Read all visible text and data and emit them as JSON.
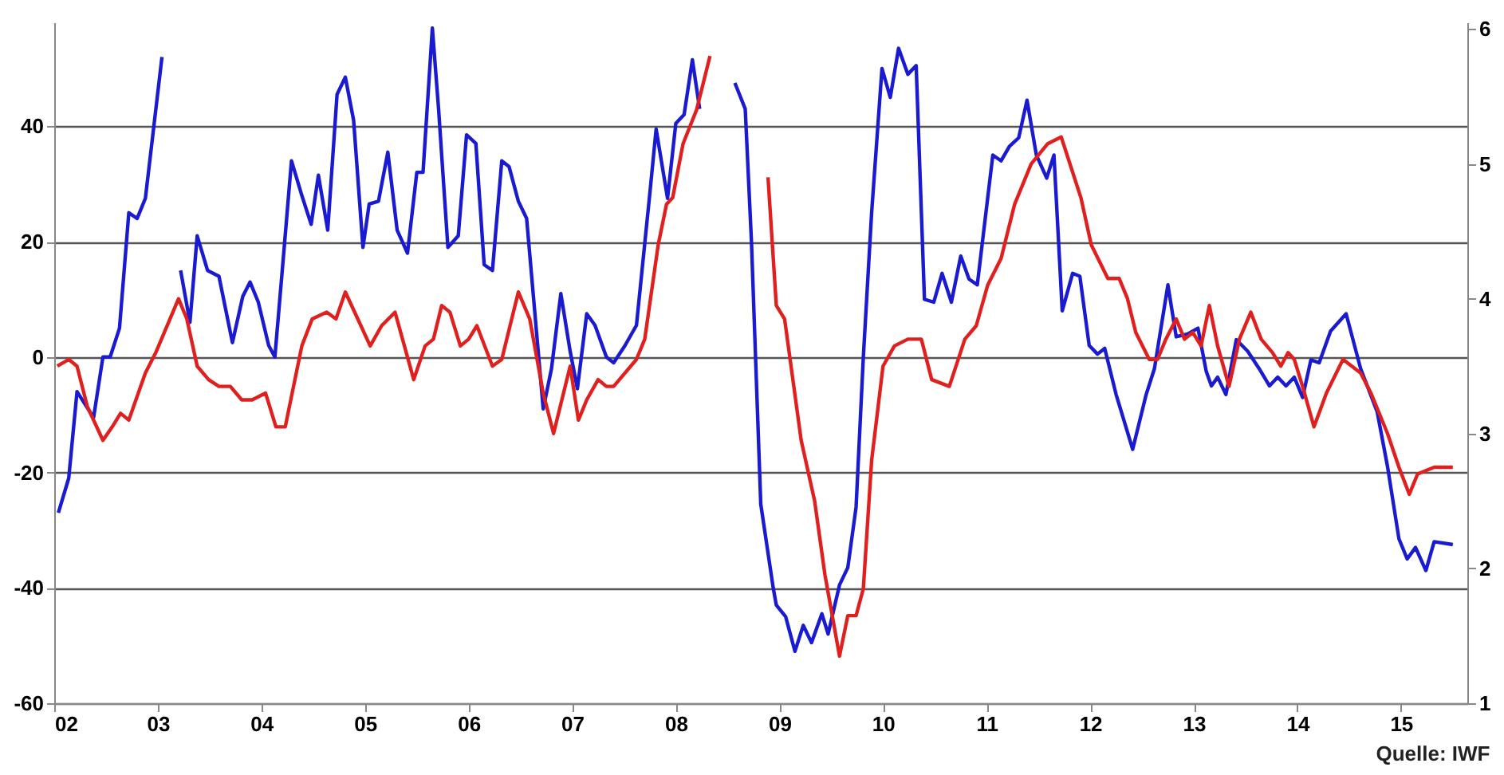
{
  "chart_data": {
    "type": "line",
    "annotations": [
      "Quelle: IWF"
    ],
    "xlim": [
      2002,
      2015.64
    ],
    "xticks": [
      {
        "value": 2002,
        "label": "02"
      },
      {
        "value": 2003,
        "label": "03"
      },
      {
        "value": 2004,
        "label": "04"
      },
      {
        "value": 2005,
        "label": "05"
      },
      {
        "value": 2006,
        "label": "06"
      },
      {
        "value": 2007,
        "label": "07"
      },
      {
        "value": 2008,
        "label": "08"
      },
      {
        "value": 2009,
        "label": "09"
      },
      {
        "value": 2010,
        "label": "10"
      },
      {
        "value": 2011,
        "label": "11"
      },
      {
        "value": 2012,
        "label": "12"
      },
      {
        "value": 2013,
        "label": "13"
      },
      {
        "value": 2014,
        "label": "14"
      },
      {
        "value": 2015,
        "label": "15"
      }
    ],
    "ylim": [
      -60,
      58
    ],
    "yticks": [
      -60,
      -40,
      -20,
      0,
      20,
      40
    ],
    "y2lim": [
      1,
      6.05
    ],
    "y2ticks": [
      1,
      2,
      3,
      4,
      5,
      6
    ],
    "grid": "y",
    "line_style": "solid",
    "series": [
      {
        "color": "#1a1ad0",
        "x": [
          2002.04,
          2002.14,
          2002.22,
          2002.38,
          2002.47,
          2002.54,
          2002.63,
          2002.72,
          2002.8,
          2002.88,
          2003.04,
          2003.13,
          2003.22,
          2003.31,
          2003.38,
          2003.48,
          2003.59,
          2003.72,
          2003.82,
          2003.89,
          2003.97,
          2004.07,
          2004.13,
          2004.22,
          2004.29,
          2004.39,
          2004.48,
          2004.55,
          2004.64,
          2004.73,
          2004.81,
          2004.89,
          2004.98,
          2005.04,
          2005.13,
          2005.22,
          2005.31,
          2005.41,
          2005.5,
          2005.56,
          2005.65,
          2005.71,
          2005.8,
          2005.9,
          2005.98,
          2006.07,
          2006.15,
          2006.23,
          2006.32,
          2006.39,
          2006.48,
          2006.56,
          2006.72,
          2006.8,
          2006.89,
          2006.98,
          2007.05,
          2007.14,
          2007.22,
          2007.33,
          2007.4,
          2007.51,
          2007.62,
          2007.75,
          2007.81,
          2007.92,
          2008,
          2008.08,
          2008.16,
          2008.23,
          2008.35,
          2008.43,
          2008.51,
          2008.57,
          2008.67,
          2008.73,
          2008.82,
          2008.94,
          2008.97,
          2009.06,
          2009.15,
          2009.23,
          2009.31,
          2009.41,
          2009.47,
          2009.58,
          2009.66,
          2009.74,
          2009.81,
          2009.89,
          2009.99,
          2010.07,
          2010.15,
          2010.24,
          2010.32,
          2010.4,
          2010.49,
          2010.57,
          2010.66,
          2010.75,
          2010.83,
          2010.91,
          2011.06,
          2011.14,
          2011.22,
          2011.31,
          2011.39,
          2011.48,
          2011.58,
          2011.65,
          2011.73,
          2011.83,
          2011.9,
          2011.99,
          2012.07,
          2012.14,
          2012.25,
          2012.41,
          2012.54,
          2012.62,
          2012.75,
          2012.83,
          2012.94,
          2013.04,
          2013.12,
          2013.17,
          2013.23,
          2013.31,
          2013.41,
          2013.52,
          2013.63,
          2013.73,
          2013.81,
          2013.89,
          2013.97,
          2014.05,
          2014.13,
          2014.21,
          2014.32,
          2014.42,
          2014.47,
          2014.61,
          2014.77,
          2014.87,
          2014.98,
          2015.06,
          2015.14,
          2015.24,
          2015.32,
          2015.5
        ],
        "values": [
          -27,
          -21,
          -6,
          -10.5,
          0,
          0,
          5,
          25,
          24,
          27.5,
          52,
          null,
          15,
          6,
          21,
          15,
          14,
          2.5,
          10.5,
          13,
          9.5,
          2,
          0,
          19,
          34,
          28,
          23,
          31.5,
          22,
          45.5,
          48.5,
          41,
          19,
          26.5,
          27,
          35.5,
          22,
          18,
          32,
          32,
          57,
          43,
          19,
          21,
          38.5,
          37,
          16,
          15,
          34,
          33,
          27,
          24,
          -9,
          -2,
          11,
          1,
          -5.5,
          7.5,
          5.5,
          0,
          -1,
          2,
          5.5,
          28.5,
          39.5,
          27.5,
          40.5,
          42,
          51.5,
          43,
          null,
          null,
          null,
          47.5,
          43,
          20,
          -25.5,
          -40,
          -43,
          -45,
          -51,
          -46.5,
          -49.5,
          -44.5,
          -48,
          -39.5,
          -36.5,
          -26,
          0,
          25,
          50,
          45,
          53.5,
          49,
          50.5,
          10,
          9.5,
          14.5,
          9.5,
          17.5,
          13.5,
          12.5,
          35,
          34,
          36.5,
          38,
          44.5,
          35,
          31,
          35,
          8,
          14.5,
          14,
          2,
          0.5,
          1.5,
          -6.5,
          -16,
          -6.5,
          -2,
          12.5,
          3.5,
          4,
          5,
          -2.5,
          -5,
          -3.5,
          -6.5,
          3,
          1,
          -2,
          -5,
          -3.5,
          -5,
          -3.5,
          -7,
          -0.5,
          -1,
          4.5,
          6.5,
          7.5,
          -2,
          -9.5,
          -19,
          -31.5,
          -35,
          -33,
          -37,
          -32,
          -32.5
        ]
      },
      {
        "color": "#e0201e",
        "axis": "y2",
        "x": [
          2002.03,
          2002.14,
          2002.22,
          2002.32,
          2002.47,
          2002.56,
          2002.64,
          2002.72,
          2002.88,
          2002.98,
          2003.2,
          2003.28,
          2003.38,
          2003.49,
          2003.59,
          2003.7,
          2003.81,
          2003.91,
          2004.04,
          2004.14,
          2004.23,
          2004.39,
          2004.49,
          2004.63,
          2004.72,
          2004.81,
          2004.93,
          2005.05,
          2005.16,
          2005.29,
          2005.47,
          2005.58,
          2005.66,
          2005.74,
          2005.82,
          2005.92,
          2006,
          2006.08,
          2006.23,
          2006.32,
          2006.48,
          2006.59,
          2006.72,
          2006.82,
          2006.98,
          2007.06,
          2007.14,
          2007.25,
          2007.33,
          2007.4,
          2007.62,
          2007.7,
          2007.83,
          2007.91,
          2007.97,
          2008.07,
          2008.2,
          2008.33,
          2008.37,
          2008.56,
          2008.8,
          2008.89,
          2008.97,
          2009.05,
          2009.21,
          2009.34,
          2009.44,
          2009.58,
          2009.66,
          2009.74,
          2009.81,
          2009.89,
          2010,
          2010.11,
          2010.24,
          2010.37,
          2010.47,
          2010.64,
          2010.79,
          2010.9,
          2011.01,
          2011.14,
          2011.27,
          2011.43,
          2011.59,
          2011.72,
          2011.91,
          2012.01,
          2012.17,
          2012.28,
          2012.36,
          2012.44,
          2012.57,
          2012.65,
          2012.73,
          2012.83,
          2012.91,
          2012.99,
          2013.07,
          2013.15,
          2013.23,
          2013.34,
          2013.44,
          2013.55,
          2013.65,
          2013.76,
          2013.84,
          2013.91,
          2013.97,
          2014.05,
          2014.16,
          2014.28,
          2014.44,
          2014.61,
          2014.71,
          2014.87,
          2014.98,
          2015.08,
          2015.16,
          2015.32,
          2015.5
        ],
        "values": [
          3.5,
          3.55,
          3.5,
          3.2,
          2.95,
          3.05,
          3.15,
          3.1,
          3.45,
          3.6,
          4,
          3.85,
          3.5,
          3.4,
          3.35,
          3.35,
          3.25,
          3.25,
          3.3,
          3.05,
          3.05,
          3.65,
          3.85,
          3.9,
          3.85,
          4.05,
          3.85,
          3.65,
          3.8,
          3.9,
          3.4,
          3.65,
          3.7,
          3.95,
          3.9,
          3.65,
          3.7,
          3.8,
          3.5,
          3.55,
          4.05,
          3.85,
          3.3,
          3,
          3.5,
          3.1,
          3.25,
          3.4,
          3.35,
          3.35,
          3.55,
          3.7,
          4.4,
          4.7,
          4.75,
          5.15,
          5.4,
          5.8,
          null,
          null,
          null,
          4.9,
          3.95,
          3.85,
          2.95,
          2.5,
          1.95,
          1.35,
          1.65,
          1.65,
          1.85,
          2.8,
          3.5,
          3.65,
          3.7,
          3.7,
          3.4,
          3.35,
          3.7,
          3.8,
          4.1,
          4.3,
          4.7,
          5,
          5.15,
          5.2,
          4.75,
          4.4,
          4.15,
          4.15,
          4,
          3.75,
          3.55,
          3.55,
          3.7,
          3.85,
          3.7,
          3.75,
          3.65,
          3.95,
          3.65,
          3.35,
          3.7,
          3.9,
          3.7,
          3.6,
          3.5,
          3.6,
          3.55,
          3.35,
          3.05,
          3.3,
          3.55,
          3.45,
          3.3,
          3,
          2.75,
          2.55,
          2.7,
          2.75,
          2.75
        ]
      }
    ]
  }
}
